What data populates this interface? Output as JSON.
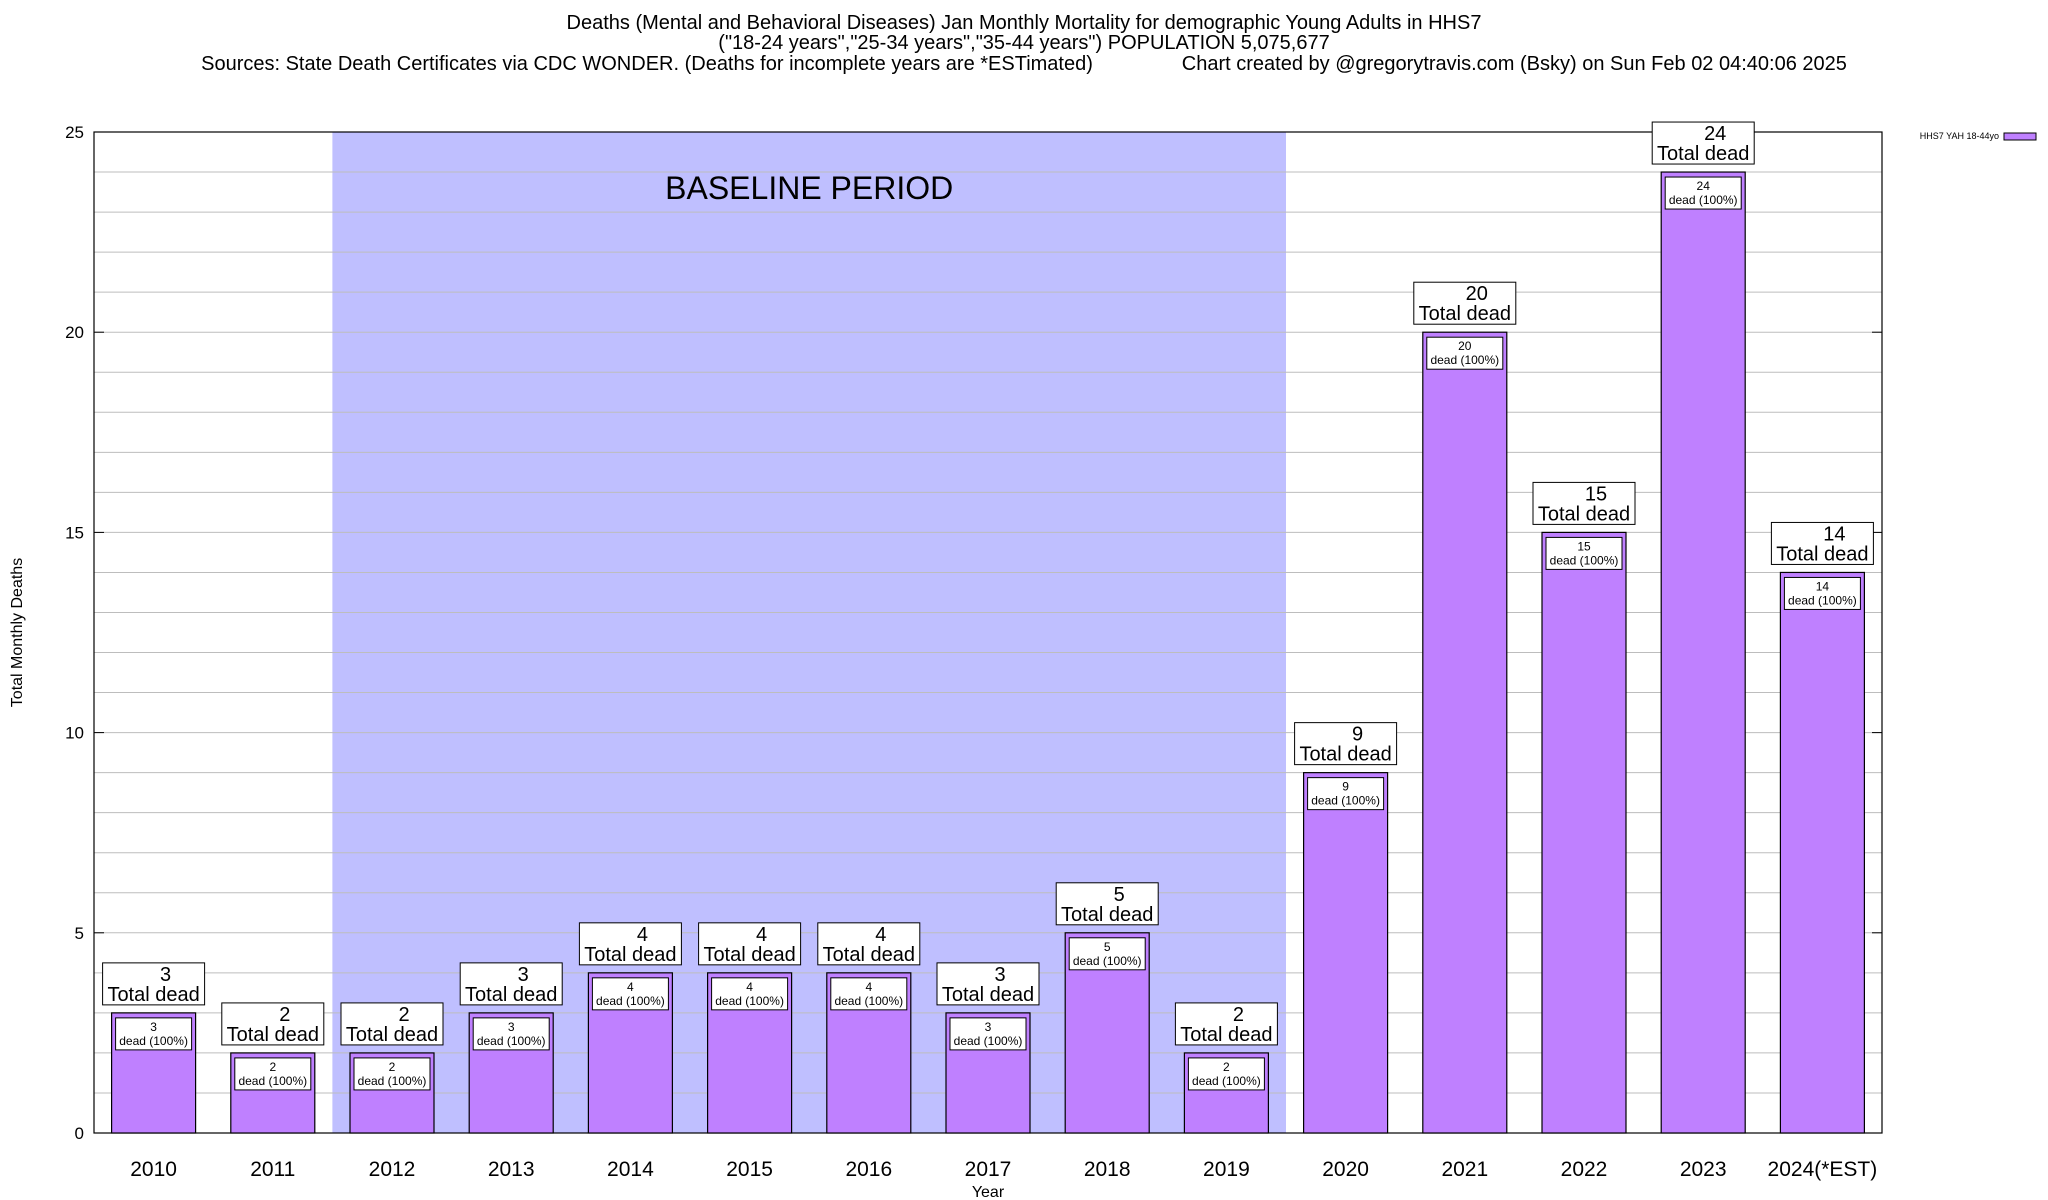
{
  "title_lines": [
    "Deaths (Mental and Behavioral Diseases) Jan Monthly Mortality for demographic Young Adults in HHS7",
    "(\"18-24 years\",\"25-34 years\",\"35-44 years\") POPULATION 5,075,677",
    "Sources: State Death Certificates via CDC WONDER. (Deaths for incomplete years are *ESTimated)                Chart created by @gregorytravis.com (Bsky) on Sun Feb 02 04:40:06 2025"
  ],
  "chart_data": {
    "type": "bar",
    "xlabel": "Year",
    "ylabel": "Total Monthly Deaths",
    "ylim": [
      0,
      25
    ],
    "yticks": [
      0,
      5,
      10,
      15,
      20,
      25
    ],
    "minor_grid_step": 1,
    "grid": true,
    "legend_placement": "top-right",
    "categories": [
      "2010",
      "2011",
      "2012",
      "2013",
      "2014",
      "2015",
      "2016",
      "2017",
      "2018",
      "2019",
      "2020",
      "2021",
      "2022",
      "2023",
      "2024(*EST)"
    ],
    "series": [
      {
        "name": "HHS7 YAH 18-44yo",
        "color": "#bf80ff",
        "values": [
          3,
          2,
          2,
          3,
          4,
          4,
          4,
          3,
          5,
          2,
          9,
          20,
          15,
          24,
          14
        ]
      }
    ],
    "baseline_region": {
      "label": "BASELINE PERIOD",
      "from_category": "2012",
      "to_category": "2019",
      "color": "#bfbfff"
    },
    "total_label_suffix": "Total dead",
    "inner_label_suffix": "dead (100%)"
  }
}
